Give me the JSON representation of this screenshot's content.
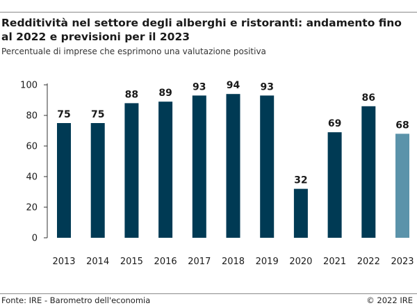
{
  "header": {
    "title": "Redditività nel settore degli alberghi e ristoranti: andamento fino al 2022 e previsioni per il 2023",
    "subtitle": "Percentuale di imprese che esprimono una valutazione positiva"
  },
  "footer": {
    "source": "Fonte: IRE - Barometro dell'economia",
    "copyright": "© 2022 IRE"
  },
  "colors": {
    "actual": "#003a54",
    "forecast": "#5b93aa",
    "axis": "#333333"
  },
  "chart_data": {
    "type": "bar",
    "title": "Redditività nel settore degli alberghi e ristoranti: andamento fino al 2022 e previsioni per il 2023",
    "subtitle": "Percentuale di imprese che esprimono una valutazione positiva",
    "categories": [
      "2013",
      "2014",
      "2015",
      "2016",
      "2017",
      "2018",
      "2019",
      "2020",
      "2021",
      "2022",
      "2023"
    ],
    "values": [
      75,
      75,
      88,
      89,
      93,
      94,
      93,
      32,
      69,
      86,
      68
    ],
    "forecast": [
      false,
      false,
      false,
      false,
      false,
      false,
      false,
      false,
      false,
      false,
      true
    ],
    "ylim": [
      0,
      100
    ],
    "yticks": [
      0,
      20,
      40,
      60,
      80,
      100
    ],
    "xlabel": "",
    "ylabel": "",
    "grid": false,
    "legend": "none"
  }
}
